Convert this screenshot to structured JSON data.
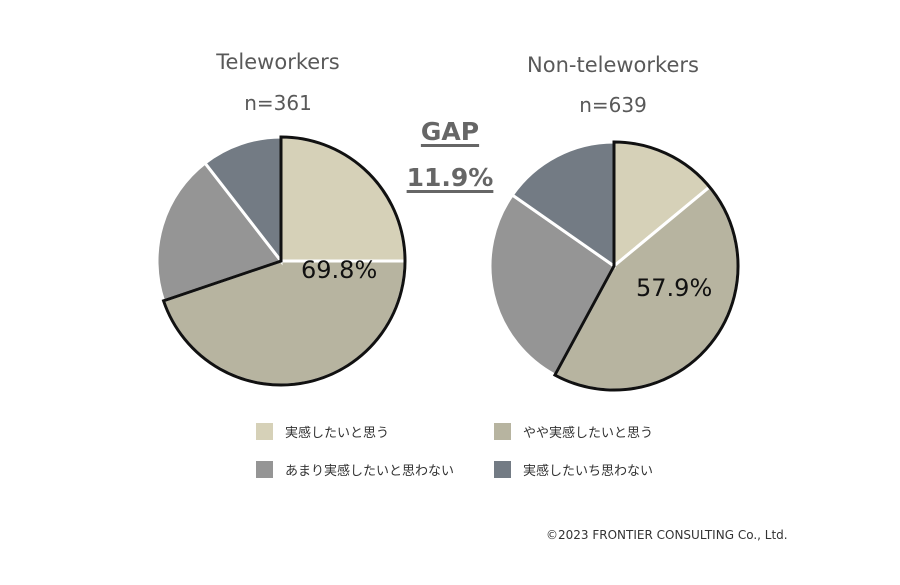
{
  "gap": {
    "label": "GAP",
    "value": "11.9%"
  },
  "copyright": "©2023 FRONTIER CONSULTING Co., Ltd.",
  "legend": [
    {
      "label": "実感したいと思う",
      "color": "#d6d1b8"
    },
    {
      "label": "やや実感したいと思う",
      "color": "#b7b4a0"
    },
    {
      "label": "あまり実感したいと思わない",
      "color": "#959595"
    },
    {
      "label": "実感したいち思わない",
      "color": "#737b84"
    }
  ],
  "chart_data": [
    {
      "type": "pie",
      "title": "Teleworkers",
      "subtitle": "n=361",
      "categories": [
        "実感したいと思う",
        "やや実感したいと思う",
        "あまり実感したいと思わない",
        "実感したいち思わない"
      ],
      "values": [
        25.0,
        44.8,
        19.7,
        10.5
      ],
      "colors": [
        "#d6d1b8",
        "#b7b4a0",
        "#959595",
        "#737b84"
      ],
      "highlight_label": "69.8%",
      "highlight_slices": [
        0,
        1
      ]
    },
    {
      "type": "pie",
      "title": "Non-teleworkers",
      "subtitle": "n=639",
      "categories": [
        "実感したいと思う",
        "やや実感したいと思う",
        "あまり実感したいと思わない",
        "実感したいち思わない"
      ],
      "values": [
        14.0,
        43.9,
        26.8,
        15.3
      ],
      "colors": [
        "#d6d1b8",
        "#b7b4a0",
        "#959595",
        "#737b84"
      ],
      "highlight_label": "57.9%",
      "highlight_slices": [
        0,
        1
      ]
    }
  ]
}
